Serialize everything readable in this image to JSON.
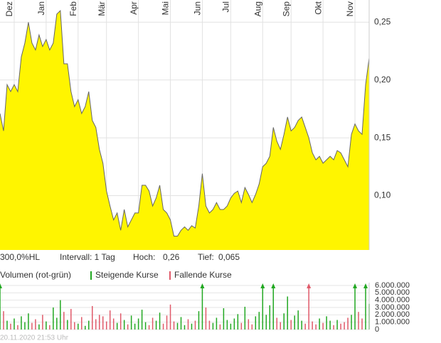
{
  "chart_data": [
    {
      "type": "area",
      "color": "#fff500",
      "line_color": "#666666",
      "xlim": [
        0,
        104
      ],
      "xticks": [
        {
          "value": 4,
          "label": "Dez"
        },
        {
          "value": 13,
          "label": "Jan"
        },
        {
          "value": 22,
          "label": "Feb"
        },
        {
          "value": 30,
          "label": "Mär"
        },
        {
          "value": 39,
          "label": "Apr"
        },
        {
          "value": 48,
          "label": "Mai"
        },
        {
          "value": 57,
          "label": "Jun"
        },
        {
          "value": 65,
          "label": "Jul"
        },
        {
          "value": 74,
          "label": "Aug"
        },
        {
          "value": 82,
          "label": "Sep"
        },
        {
          "value": 91,
          "label": "Okt"
        },
        {
          "value": 100,
          "label": "Nov"
        }
      ],
      "ylim": [
        0.053,
        0.26
      ],
      "yticks": [
        {
          "value": 0.1,
          "label": "0,10"
        },
        {
          "value": 0.15,
          "label": "0,15"
        },
        {
          "value": 0.2,
          "label": "0,20"
        },
        {
          "value": 0.25,
          "label": "0,25"
        }
      ],
      "grid": true,
      "values": [
        0.171,
        0.156,
        0.196,
        0.19,
        0.196,
        0.19,
        0.22,
        0.232,
        0.25,
        0.232,
        0.226,
        0.239,
        0.229,
        0.235,
        0.226,
        0.232,
        0.257,
        0.26,
        0.214,
        0.214,
        0.19,
        0.177,
        0.183,
        0.171,
        0.177,
        0.19,
        0.165,
        0.159,
        0.14,
        0.128,
        0.104,
        0.091,
        0.079,
        0.085,
        0.07,
        0.088,
        0.073,
        0.079,
        0.085,
        0.085,
        0.109,
        0.109,
        0.104,
        0.091,
        0.098,
        0.109,
        0.088,
        0.085,
        0.079,
        0.065,
        0.065,
        0.07,
        0.073,
        0.07,
        0.074,
        0.072,
        0.091,
        0.119,
        0.091,
        0.085,
        0.088,
        0.094,
        0.088,
        0.088,
        0.091,
        0.098,
        0.102,
        0.104,
        0.094,
        0.107,
        0.101,
        0.094,
        0.101,
        0.11,
        0.125,
        0.128,
        0.134,
        0.159,
        0.147,
        0.14,
        0.153,
        0.168,
        0.156,
        0.159,
        0.165,
        0.168,
        0.159,
        0.15,
        0.137,
        0.131,
        0.134,
        0.128,
        0.131,
        0.134,
        0.131,
        0.139,
        0.137,
        0.131,
        0.125,
        0.153,
        0.162,
        0.156,
        0.153,
        0.196,
        0.219
      ]
    },
    {
      "type": "bar",
      "title": "Volumen (rot-grün)",
      "xlim": [
        0,
        104
      ],
      "ylim": [
        0,
        6000000
      ],
      "yticks": [
        0,
        {
          "value": 1000000,
          "label": "1.000.000"
        },
        {
          "value": 2000000,
          "label": "2.000.000"
        },
        {
          "value": 3000000,
          "label": "3.000.000"
        },
        {
          "value": 4000000,
          "label": "4.000.000"
        },
        {
          "value": 5000000,
          "label": "5.000.000"
        },
        {
          "value": 6000000,
          "label": "6.000.000"
        }
      ],
      "grid": true,
      "series": [
        {
          "name": "Steigende Kurse",
          "color": "#22a822",
          "values": [
            6000000,
            null,
            1200000,
            null,
            1500000,
            null,
            1800000,
            1000000,
            2200000,
            null,
            null,
            700000,
            null,
            1100000,
            null,
            3000000,
            1600000,
            4000000,
            null,
            1300000,
            null,
            null,
            800000,
            null,
            500000,
            1200000,
            null,
            null,
            null,
            null,
            null,
            null,
            null,
            900000,
            null,
            1300000,
            null,
            1900000,
            800000,
            1500000,
            2700000,
            1000000,
            null,
            null,
            1200000,
            2300000,
            null,
            null,
            null,
            null,
            900000,
            1700000,
            600000,
            null,
            800000,
            null,
            2500000,
            6000000,
            null,
            null,
            900000,
            1600000,
            null,
            2900000,
            1300000,
            800000,
            1500000,
            2100000,
            null,
            3100000,
            null,
            null,
            1800000,
            2400000,
            6000000,
            2000000,
            3300000,
            6000000,
            null,
            null,
            2200000,
            4500000,
            null,
            1900000,
            2600000,
            1200000,
            null,
            null,
            null,
            null,
            1500000,
            null,
            1800000,
            1200000,
            null,
            1300000,
            null,
            null,
            null,
            2000000,
            6000000,
            null,
            null,
            6000000,
            3500000
          ]
        },
        {
          "name": "Fallende Kurse",
          "color": "#e05a6a",
          "values": [
            null,
            2500000,
            null,
            800000,
            null,
            600000,
            null,
            null,
            null,
            900000,
            1400000,
            null,
            2000000,
            null,
            600000,
            null,
            null,
            null,
            2400000,
            null,
            2800000,
            1000000,
            null,
            1700000,
            null,
            null,
            3200000,
            1400000,
            2000000,
            1800000,
            1100000,
            2600000,
            1500000,
            null,
            2200000,
            null,
            700000,
            null,
            null,
            null,
            null,
            null,
            600000,
            1600000,
            null,
            null,
            800000,
            1900000,
            3400000,
            1100000,
            null,
            null,
            null,
            1400000,
            null,
            1200000,
            null,
            null,
            3000000,
            1200000,
            null,
            null,
            700000,
            null,
            null,
            null,
            null,
            null,
            900000,
            null,
            1400000,
            700000,
            null,
            null,
            null,
            null,
            null,
            null,
            1600000,
            1000000,
            null,
            null,
            1300000,
            null,
            null,
            null,
            800000,
            6000000,
            1100000,
            700000,
            null,
            900000,
            null,
            null,
            600000,
            null,
            800000,
            1000000,
            1600000,
            null,
            null,
            2400000,
            1500000,
            null,
            null
          ]
        }
      ]
    }
  ],
  "info": {
    "scale": "300,0%HL",
    "interval": "Intervall: 1 Tag",
    "high_label": "Hoch:",
    "high": "0,26",
    "low_label": "Tief:",
    "low": "0,065"
  },
  "footer": "20.11.2020 21:53 Uhr"
}
